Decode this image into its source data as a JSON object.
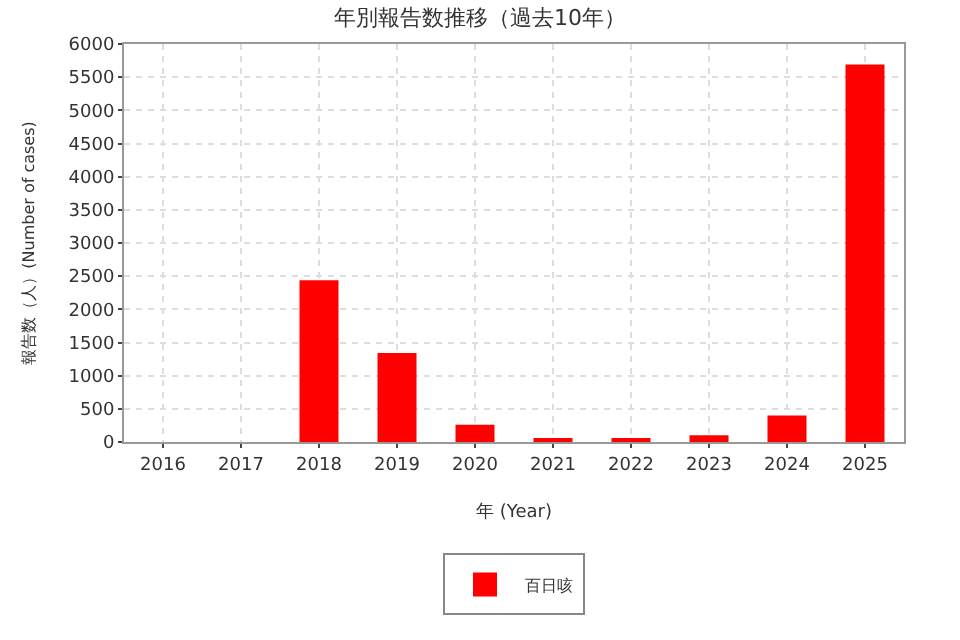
{
  "chart_data": {
    "type": "bar",
    "title": "年別報告数推移（過去10年）",
    "xlabel": "年 (Year)",
    "ylabel": "報告数（人）(Number of cases)",
    "categories": [
      "2016",
      "2017",
      "2018",
      "2019",
      "2020",
      "2021",
      "2022",
      "2023",
      "2024",
      "2025"
    ],
    "series": [
      {
        "name": "百日咳",
        "color": "#ff0000",
        "values": [
          0,
          0,
          2440,
          1340,
          260,
          60,
          50,
          100,
          400,
          5690
        ]
      }
    ],
    "ylim": [
      0,
      6000
    ],
    "yticks": [
      0,
      500,
      1000,
      1500,
      2000,
      2500,
      3000,
      3500,
      4000,
      4500,
      5000,
      5500,
      6000
    ],
    "grid": true,
    "legend": "bottom"
  }
}
